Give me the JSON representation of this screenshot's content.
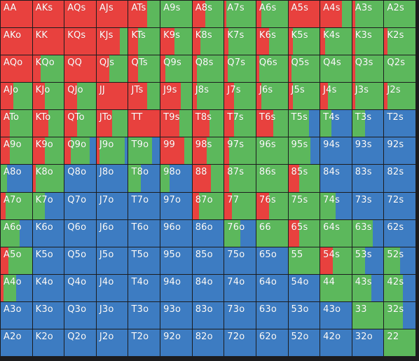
{
  "colors": {
    "raise": "#e8413e",
    "call": "#5cb85c",
    "fold": "#3d7cc2"
  },
  "hands": [
    [
      "AA",
      "AKs",
      "AQs",
      "AJs",
      "ATs",
      "A9s",
      "A8s",
      "A7s",
      "A6s",
      "A5s",
      "A4s",
      "A3s",
      "A2s"
    ],
    [
      "AKo",
      "KK",
      "KQs",
      "KJs",
      "KTs",
      "K9s",
      "K8s",
      "K7s",
      "K6s",
      "K5s",
      "K4s",
      "K3s",
      "K2s"
    ],
    [
      "AQo",
      "KQo",
      "QQ",
      "QJs",
      "QTs",
      "Q9s",
      "Q8s",
      "Q7s",
      "Q6s",
      "Q5s",
      "Q4s",
      "Q3s",
      "Q2s"
    ],
    [
      "AJo",
      "KJo",
      "QJo",
      "JJ",
      "JTs",
      "J9s",
      "J8s",
      "J7s",
      "J6s",
      "J5s",
      "J4s",
      "J3s",
      "J2s"
    ],
    [
      "ATo",
      "KTo",
      "QTo",
      "JTo",
      "TT",
      "T9s",
      "T8s",
      "T7s",
      "T6s",
      "T5s",
      "T4s",
      "T3s",
      "T2s"
    ],
    [
      "A9o",
      "K9o",
      "Q9o",
      "J9o",
      "T9o",
      "99",
      "98s",
      "97s",
      "96s",
      "95s",
      "94s",
      "93s",
      "92s"
    ],
    [
      "A8o",
      "K8o",
      "Q8o",
      "J8o",
      "T8o",
      "98o",
      "88",
      "87s",
      "86s",
      "85s",
      "84s",
      "83s",
      "82s"
    ],
    [
      "A7o",
      "K7o",
      "Q7o",
      "J7o",
      "T7o",
      "97o",
      "87o",
      "77",
      "76s",
      "75s",
      "74s",
      "73s",
      "72s"
    ],
    [
      "A6o",
      "K6o",
      "Q6o",
      "J6o",
      "T6o",
      "96o",
      "86o",
      "76o",
      "66",
      "65s",
      "64s",
      "63s",
      "62s"
    ],
    [
      "A5o",
      "K5o",
      "Q5o",
      "J5o",
      "T5o",
      "95o",
      "85o",
      "75o",
      "65o",
      "55",
      "54s",
      "53s",
      "52s"
    ],
    [
      "A4o",
      "K4o",
      "Q4o",
      "J4o",
      "T4o",
      "94o",
      "84o",
      "74o",
      "64o",
      "54o",
      "44",
      "43s",
      "42s"
    ],
    [
      "A3o",
      "K3o",
      "Q3o",
      "J3o",
      "T3o",
      "93o",
      "83o",
      "73o",
      "63o",
      "53o",
      "43o",
      "33",
      "32s"
    ],
    [
      "A2o",
      "K2o",
      "Q2o",
      "J2o",
      "T2o",
      "92o",
      "82o",
      "72o",
      "62o",
      "52o",
      "42o",
      "32o",
      "22"
    ]
  ],
  "frequencies": [
    [
      [
        1,
        0,
        0
      ],
      [
        1,
        0,
        0
      ],
      [
        1,
        0,
        0
      ],
      [
        1,
        0,
        0
      ],
      [
        0.6,
        0.4,
        0
      ],
      [
        0,
        1,
        0
      ],
      [
        0.4,
        0.6,
        0
      ],
      [
        0.05,
        0.95,
        0
      ],
      [
        0.15,
        0.85,
        0
      ],
      [
        1,
        0,
        0
      ],
      [
        0.7,
        0.3,
        0
      ],
      [
        0.1,
        0.9,
        0
      ],
      [
        0,
        1,
        0
      ]
    ],
    [
      [
        1,
        0,
        0
      ],
      [
        1,
        0,
        0
      ],
      [
        1,
        0,
        0
      ],
      [
        0.75,
        0.25,
        0
      ],
      [
        0.3,
        0.7,
        0
      ],
      [
        0.45,
        0.55,
        0
      ],
      [
        0.25,
        0.75,
        0
      ],
      [
        0.12,
        0.88,
        0
      ],
      [
        0.4,
        0.6,
        0
      ],
      [
        0.15,
        0.85,
        0
      ],
      [
        0.15,
        0.85,
        0
      ],
      [
        0.1,
        0.9,
        0
      ],
      [
        0.1,
        0.9,
        0
      ]
    ],
    [
      [
        1,
        0,
        0
      ],
      [
        0.25,
        0.75,
        0
      ],
      [
        1,
        0,
        0
      ],
      [
        0.4,
        0.6,
        0
      ],
      [
        0.3,
        0.7,
        0
      ],
      [
        0.15,
        0.85,
        0
      ],
      [
        0.15,
        0.85,
        0
      ],
      [
        0.1,
        0.9,
        0
      ],
      [
        0.1,
        0.9,
        0
      ],
      [
        0.1,
        0.9,
        0
      ],
      [
        0,
        1,
        0
      ],
      [
        0.1,
        0.9,
        0
      ],
      [
        0,
        1,
        0
      ]
    ],
    [
      [
        0.4,
        0.6,
        0
      ],
      [
        0.4,
        0.6,
        0
      ],
      [
        0.4,
        0.6,
        0
      ],
      [
        1,
        0,
        0
      ],
      [
        0.6,
        0.4,
        0
      ],
      [
        0.65,
        0.35,
        0
      ],
      [
        0.15,
        0.85,
        0
      ],
      [
        0.3,
        0.7,
        0
      ],
      [
        0.15,
        0.85,
        0
      ],
      [
        0.15,
        0.85,
        0
      ],
      [
        0.25,
        0.75,
        0
      ],
      [
        0.1,
        0.9,
        0
      ],
      [
        0.1,
        0.9,
        0
      ]
    ],
    [
      [
        0.3,
        0.7,
        0
      ],
      [
        0.5,
        0.5,
        0
      ],
      [
        0.4,
        0.6,
        0
      ],
      [
        0.5,
        0.5,
        0
      ],
      [
        1,
        0,
        0
      ],
      [
        0.6,
        0.4,
        0
      ],
      [
        0.55,
        0.45,
        0
      ],
      [
        0.3,
        0.7,
        0
      ],
      [
        0.55,
        0.45,
        0
      ],
      [
        0,
        0.65,
        0.35
      ],
      [
        0,
        0.35,
        0.65
      ],
      [
        0,
        0.4,
        0.6
      ],
      [
        0,
        0,
        1
      ]
    ],
    [
      [
        0.3,
        0.7,
        0
      ],
      [
        0.4,
        0.6,
        0
      ],
      [
        0.2,
        0.6,
        0.2
      ],
      [
        0.1,
        0.8,
        0.1
      ],
      [
        0,
        0.75,
        0.25
      ],
      [
        0.75,
        0.25,
        0
      ],
      [
        0.45,
        0.55,
        0
      ],
      [
        0.15,
        0.85,
        0
      ],
      [
        0,
        1,
        0
      ],
      [
        0,
        0.7,
        0.3
      ],
      [
        0,
        0,
        1
      ],
      [
        0,
        0,
        1
      ],
      [
        0,
        0,
        1
      ]
    ],
    [
      [
        0,
        0.2,
        0.8
      ],
      [
        0.1,
        0.9,
        0
      ],
      [
        0,
        0,
        1
      ],
      [
        0,
        0,
        1
      ],
      [
        0,
        0.4,
        0.6
      ],
      [
        0,
        0.3,
        0.7
      ],
      [
        0.6,
        0.4,
        0
      ],
      [
        0.15,
        0.85,
        0
      ],
      [
        0,
        1,
        0
      ],
      [
        0.35,
        0.65,
        0
      ],
      [
        0,
        0,
        1
      ],
      [
        0,
        0,
        1
      ],
      [
        0,
        0,
        1
      ]
    ],
    [
      [
        0.15,
        0.85,
        0
      ],
      [
        0,
        0.4,
        0.6
      ],
      [
        0,
        0,
        1
      ],
      [
        0,
        0,
        1
      ],
      [
        0,
        0,
        1
      ],
      [
        0,
        0,
        1
      ],
      [
        0.2,
        0.8,
        0
      ],
      [
        0.25,
        0.75,
        0
      ],
      [
        0.4,
        0.6,
        0
      ],
      [
        0,
        1,
        0
      ],
      [
        0,
        0.5,
        0.5
      ],
      [
        0,
        0,
        1
      ],
      [
        0,
        0,
        1
      ]
    ],
    [
      [
        0,
        0.6,
        0.4
      ],
      [
        0,
        0,
        1
      ],
      [
        0,
        0,
        1
      ],
      [
        0,
        0,
        1
      ],
      [
        0,
        0,
        1
      ],
      [
        0,
        0,
        1
      ],
      [
        0,
        0,
        1
      ],
      [
        0,
        0.5,
        0.5
      ],
      [
        0,
        1,
        0
      ],
      [
        0.35,
        0.65,
        0
      ],
      [
        0,
        1,
        0
      ],
      [
        0,
        0.65,
        0.35
      ],
      [
        0,
        0,
        1
      ]
    ],
    [
      [
        0.25,
        0.75,
        0
      ],
      [
        0,
        0,
        1
      ],
      [
        0,
        0,
        1
      ],
      [
        0,
        0,
        1
      ],
      [
        0,
        0,
        1
      ],
      [
        0,
        0,
        1
      ],
      [
        0,
        0,
        1
      ],
      [
        0,
        0,
        1
      ],
      [
        0,
        0,
        1
      ],
      [
        0,
        1,
        0
      ],
      [
        0.4,
        0.6,
        0
      ],
      [
        0,
        0.4,
        0.6
      ],
      [
        0,
        0.5,
        0.5
      ]
    ],
    [
      [
        0.1,
        0.4,
        0.5
      ],
      [
        0,
        0,
        1
      ],
      [
        0,
        0,
        1
      ],
      [
        0,
        0,
        1
      ],
      [
        0,
        0,
        1
      ],
      [
        0,
        0,
        1
      ],
      [
        0,
        0,
        1
      ],
      [
        0,
        0,
        1
      ],
      [
        0,
        0,
        1
      ],
      [
        0,
        0,
        1
      ],
      [
        0,
        1,
        0
      ],
      [
        0,
        0.6,
        0.4
      ],
      [
        0,
        0.6,
        0.4
      ]
    ],
    [
      [
        0,
        0,
        1
      ],
      [
        0,
        0,
        1
      ],
      [
        0,
        0,
        1
      ],
      [
        0,
        0,
        1
      ],
      [
        0,
        0,
        1
      ],
      [
        0,
        0,
        1
      ],
      [
        0,
        0,
        1
      ],
      [
        0,
        0,
        1
      ],
      [
        0,
        0,
        1
      ],
      [
        0,
        0,
        1
      ],
      [
        0,
        0,
        1
      ],
      [
        0,
        1,
        0
      ],
      [
        0,
        0.6,
        0.4
      ]
    ],
    [
      [
        0,
        0,
        1
      ],
      [
        0,
        0,
        1
      ],
      [
        0,
        0,
        1
      ],
      [
        0,
        0,
        1
      ],
      [
        0,
        0,
        1
      ],
      [
        0,
        0,
        1
      ],
      [
        0,
        0,
        1
      ],
      [
        0,
        0,
        1
      ],
      [
        0,
        0,
        1
      ],
      [
        0,
        0,
        1
      ],
      [
        0,
        0,
        1
      ],
      [
        0,
        0,
        1
      ],
      [
        0,
        1,
        0
      ]
    ]
  ]
}
